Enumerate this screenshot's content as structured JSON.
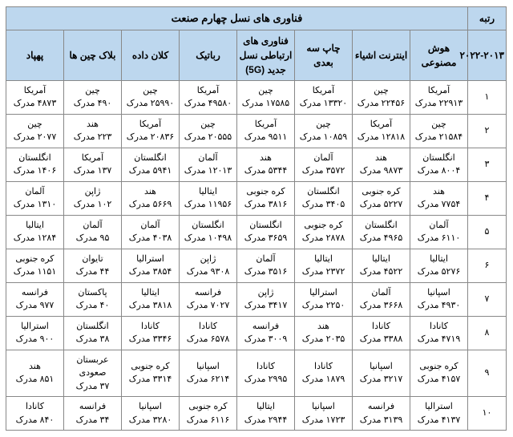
{
  "title": "فناوری های نسل چهارم صنعت",
  "rank_header": "رتبه",
  "rank_subheader": "۲۰۲۲-۲۰۱۳",
  "columns": [
    "هوش مصنوعی",
    "اینترنت اشیاء",
    "چاپ سه بعدی",
    "فناوری های ارتباطی نسل جدید (5G)",
    "رباتیک",
    "کلان داده",
    "بلاک چین ها",
    "پهپاد"
  ],
  "ranks": [
    "۱",
    "۲",
    "۳",
    "۴",
    "۵",
    "۶",
    "۷",
    "۸",
    "۹",
    "۱۰"
  ],
  "rows": [
    [
      {
        "c": "آمریکا",
        "d": "۲۲۹۱۳ مدرک"
      },
      {
        "c": "چین",
        "d": "۲۲۴۵۶ مدرک"
      },
      {
        "c": "آمریکا",
        "d": "۱۳۳۲۰ مدرک"
      },
      {
        "c": "چین",
        "d": "۱۷۵۸۵ مدرک"
      },
      {
        "c": "آمریکا",
        "d": "۴۹۵۸۰ مدرک"
      },
      {
        "c": "چین",
        "d": "۲۵۹۹۰ مدرک"
      },
      {
        "c": "چین",
        "d": "۴۹۰ مدرک"
      },
      {
        "c": "آمریکا",
        "d": "۴۸۷۳ مدرک"
      }
    ],
    [
      {
        "c": "چین",
        "d": "۲۱۵۸۴ مدرک"
      },
      {
        "c": "آمریکا",
        "d": "۱۲۸۱۸ مدرک"
      },
      {
        "c": "چین",
        "d": "۱۰۸۵۹ مدرک"
      },
      {
        "c": "آمریکا",
        "d": "۹۵۱۱ مدرک"
      },
      {
        "c": "چین",
        "d": "۲۰۵۵۵ مدرک"
      },
      {
        "c": "آمریکا",
        "d": "۲۰۸۳۶ مدرک"
      },
      {
        "c": "هند",
        "d": "۲۲۳ مدرک"
      },
      {
        "c": "چین",
        "d": "۲۰۷۷ مدرک"
      }
    ],
    [
      {
        "c": "انگلستان",
        "d": "۸۰۰۴ مدرک"
      },
      {
        "c": "هند",
        "d": "۹۸۷۳ مدرک"
      },
      {
        "c": "آلمان",
        "d": "۳۵۷۲ مدرک"
      },
      {
        "c": "هند",
        "d": "۵۳۴۴ مدرک"
      },
      {
        "c": "آلمان",
        "d": "۱۲۰۱۳ مدرک"
      },
      {
        "c": "انگلستان",
        "d": "۵۹۴۱ مدرک"
      },
      {
        "c": "آمریکا",
        "d": "۱۳۷ مدرک"
      },
      {
        "c": "انگلستان",
        "d": "۱۴۰۶ مدرک"
      }
    ],
    [
      {
        "c": "هند",
        "d": "۷۷۵۴ مدرک"
      },
      {
        "c": "کره جنوبی",
        "d": "۵۲۲۷ مدرک"
      },
      {
        "c": "انگلستان",
        "d": "۳۴۰۵ مدرک"
      },
      {
        "c": "کره جنوبی",
        "d": "۳۸۱۶ مدرک"
      },
      {
        "c": "ایتالیا",
        "d": "۱۱۹۵۶ مدرک"
      },
      {
        "c": "هند",
        "d": "۵۶۶۹ مدرک"
      },
      {
        "c": "ژاپن",
        "d": "۱۰۲ مدرک"
      },
      {
        "c": "آلمان",
        "d": "۱۳۱۰ مدرک"
      }
    ],
    [
      {
        "c": "آلمان",
        "d": "۶۱۱۰ مدرک"
      },
      {
        "c": "انگلستان",
        "d": "۴۹۶۵ مدرک"
      },
      {
        "c": "کره جنوبی",
        "d": "۲۸۷۸ مدرک"
      },
      {
        "c": "انگلستان",
        "d": "۳۶۵۹ مدرک"
      },
      {
        "c": "انگلستان",
        "d": "۱۰۴۹۸ مدرک"
      },
      {
        "c": "آلمان",
        "d": "۴۰۳۸ مدرک"
      },
      {
        "c": "آلمان",
        "d": "۹۵ مدرک"
      },
      {
        "c": "ایتالیا",
        "d": "۱۲۸۴ مدرک"
      }
    ],
    [
      {
        "c": "ایتالیا",
        "d": "۵۲۷۶ مدرک"
      },
      {
        "c": "ایتالیا",
        "d": "۴۵۲۲ مدرک"
      },
      {
        "c": "ایتالیا",
        "d": "۲۳۷۲ مدرک"
      },
      {
        "c": "آلمان",
        "d": "۳۵۱۶ مدرک"
      },
      {
        "c": "ژاپن",
        "d": "۹۳۰۸ مدرک"
      },
      {
        "c": "استرالیا",
        "d": "۳۸۵۴ مدرک"
      },
      {
        "c": "تایوان",
        "d": "۴۴ مدرک"
      },
      {
        "c": "کره جنوبی",
        "d": "۱۱۵۱ مدرک"
      }
    ],
    [
      {
        "c": "اسپانیا",
        "d": "۴۹۳۰ مدرک"
      },
      {
        "c": "آلمان",
        "d": "۳۶۶۸ مدرک"
      },
      {
        "c": "استرالیا",
        "d": "۲۲۵۰ مدرک"
      },
      {
        "c": "ژاپن",
        "d": "۳۴۱۷ مدرک"
      },
      {
        "c": "فرانسه",
        "d": "۷۰۲۷ مدرک"
      },
      {
        "c": "ایتالیا",
        "d": "۳۸۱۸ مدرک"
      },
      {
        "c": "پاکستان",
        "d": "۴۰ مدرک"
      },
      {
        "c": "فرانسه",
        "d": "۹۷۷ مدرک"
      }
    ],
    [
      {
        "c": "کانادا",
        "d": "۴۷۱۹ مدرک"
      },
      {
        "c": "کانادا",
        "d": "۳۳۸۸ مدرک"
      },
      {
        "c": "هند",
        "d": "۲۰۳۵ مدرک"
      },
      {
        "c": "فرانسه",
        "d": "۳۰۰۹ مدرک"
      },
      {
        "c": "کانادا",
        "d": "۶۵۷۸ مدرک"
      },
      {
        "c": "کانادا",
        "d": "۳۳۴۶ مدرک"
      },
      {
        "c": "انگلستان",
        "d": "۳۸ مدرک"
      },
      {
        "c": "استرالیا",
        "d": "۹۰۰ مدرک"
      }
    ],
    [
      {
        "c": "کره جنوبی",
        "d": "۴۱۵۷ مدرک"
      },
      {
        "c": "اسپانیا",
        "d": "۳۲۱۷ مدرک"
      },
      {
        "c": "کانادا",
        "d": "۱۸۷۹ مدرک"
      },
      {
        "c": "کانادا",
        "d": "۲۹۹۵ مدرک"
      },
      {
        "c": "اسپانیا",
        "d": "۶۲۱۴ مدرک"
      },
      {
        "c": "کره جنوبی",
        "d": "۳۳۱۴ مدرک"
      },
      {
        "c": "عربستان صعودی",
        "d": "۳۷ مدرک"
      },
      {
        "c": "هند",
        "d": "۸۵۱ مدرک"
      }
    ],
    [
      {
        "c": "استرالیا",
        "d": "۴۱۳۷ مدرک"
      },
      {
        "c": "فرانسه",
        "d": "۳۱۳۹ مدرک"
      },
      {
        "c": "اسپانیا",
        "d": "۱۷۲۳ مدرک"
      },
      {
        "c": "ایتالیا",
        "d": "۲۹۴۴ مدرک"
      },
      {
        "c": "کره جنوبی",
        "d": "۶۱۱۶ مدرک"
      },
      {
        "c": "اسپانیا",
        "d": "۳۲۸۰ مدرک"
      },
      {
        "c": "فرانسه",
        "d": "۳۴ مدرک"
      },
      {
        "c": "کانادا",
        "d": "۸۴۰ مدرک"
      }
    ]
  ],
  "colors": {
    "header_bg": "#bdd7ee",
    "border": "#888888"
  }
}
